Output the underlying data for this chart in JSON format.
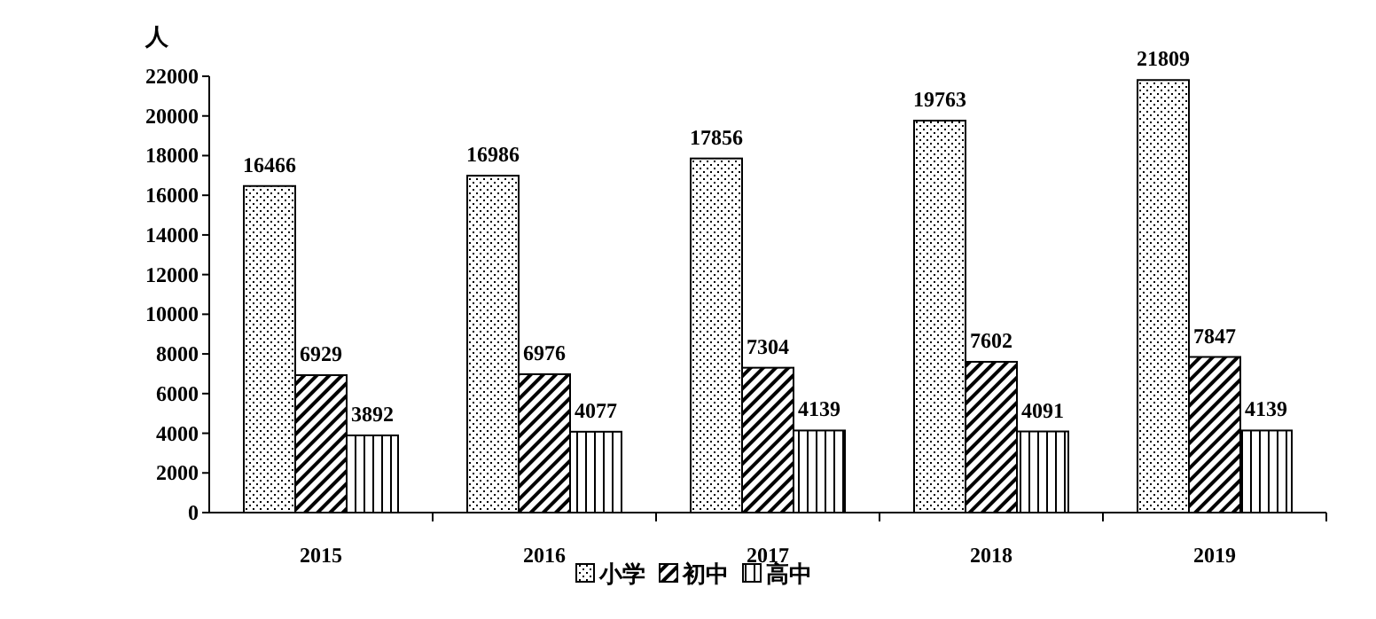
{
  "chart_data": {
    "type": "bar",
    "ylabel": "人",
    "categories": [
      "2015",
      "2016",
      "2017",
      "2018",
      "2019"
    ],
    "series": [
      {
        "name": "小学",
        "color": "#000000",
        "values": [
          16466,
          16986,
          17856,
          19763,
          21809
        ]
      },
      {
        "name": "初中",
        "color": "#000000",
        "values": [
          6929,
          6976,
          7304,
          7602,
          7847
        ]
      },
      {
        "name": "高中",
        "color": "#000000",
        "values": [
          3892,
          4077,
          4139,
          4091,
          4139
        ]
      }
    ],
    "ylim": [
      0,
      22000
    ],
    "yticks": [
      0,
      2000,
      4000,
      6000,
      8000,
      10000,
      12000,
      14000,
      16000,
      18000,
      20000,
      22000
    ],
    "data_labels": true,
    "legend": "bottom",
    "grid": false
  }
}
